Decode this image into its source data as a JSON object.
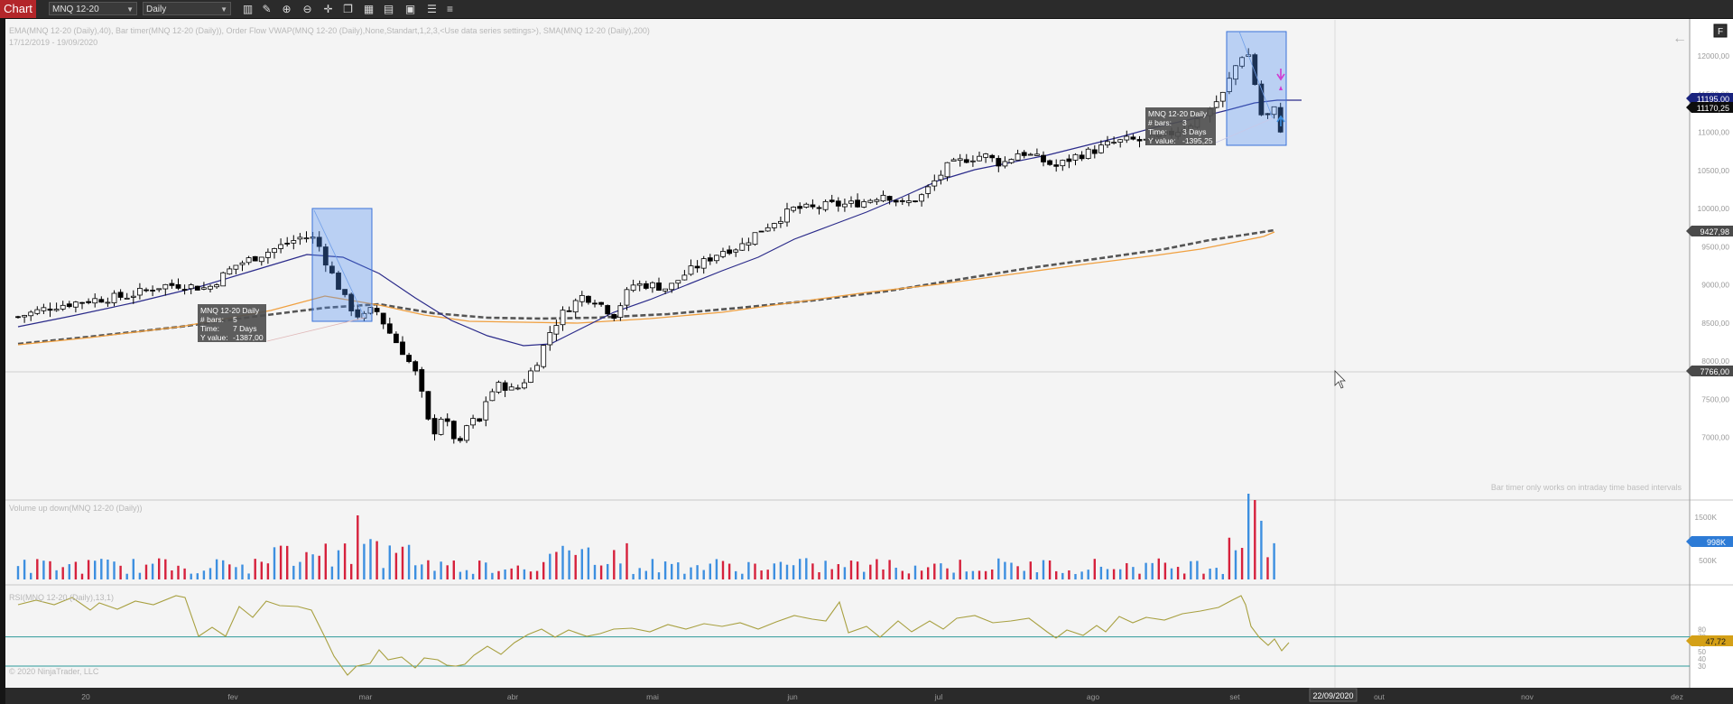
{
  "toolbar": {
    "tab_label": "Chart",
    "instrument": "MNQ 12-20",
    "interval": "Daily",
    "tools": [
      "bar-style-icon",
      "draw-pencil-icon",
      "zoom-in-icon",
      "zoom-out-icon",
      "crosshair-icon",
      "copy-icon",
      "grid-layout-icon",
      "strategy-icon",
      "data-box-icon",
      "properties-icon"
    ]
  },
  "price_panel": {
    "indicator_label": "EMA(MNQ 12-20 (Daily),40), Bar timer(MNQ 12-20 (Daily)), Order Flow VWAP(MNQ 12-20 (Daily),None,Standart,1,2,3,<Use data series settings>), SMA(MNQ 12-20 (Daily),200)",
    "date_range": "17/12/2019 - 19/09/2020",
    "bar_timer_note": "Bar timer only works on intraday time based intervals",
    "price_ticks": [
      "12000,00",
      "11500,00",
      "11000,00",
      "10500,00",
      "10000,00",
      "9500,00",
      "9000,00",
      "8500,00",
      "8000,00",
      "7500,00",
      "7000,00"
    ],
    "markers": {
      "last_price": "11170,25",
      "hidden_price": "11195,00",
      "sma_value": "9427,98",
      "crosshair_price": "7766,00"
    },
    "tooltips": [
      {
        "title": "MNQ 12-20 Daily",
        "bars_label": "# bars:",
        "bars": "5",
        "time_label": "Time:",
        "time": "7 Days",
        "y_label": "Y value:",
        "y": "-1387,00"
      },
      {
        "title": "MNQ 12-20 Daily",
        "bars_label": "# bars:",
        "bars": "3",
        "time_label": "Time:",
        "time": "3 Days",
        "y_label": "Y value:",
        "y": "-1395,25"
      }
    ],
    "f_button": "F",
    "back_arrow": "←"
  },
  "volume_panel": {
    "label": "Volume up down(MNQ 12-20 (Daily))",
    "ticks": [
      "1500K",
      "1000K",
      "500K"
    ],
    "marker": "998K"
  },
  "rsi_panel": {
    "label": "RSI(MNQ 12-20 (Daily),13,1)",
    "copyright": "© 2020 NinjaTrader, LLC",
    "ticks": [
      "80",
      "70",
      "60",
      "50",
      "40",
      "30"
    ],
    "marker": "47,72"
  },
  "time_axis": {
    "labels": [
      "20",
      "fev",
      "mar",
      "abr",
      "mai",
      "jun",
      "jul",
      "ago",
      "set",
      "out",
      "nov",
      "dez"
    ],
    "crosshair_date": "22/09/2020"
  },
  "colors": {
    "bg": "#f4f4f4",
    "candle_up": "#ffffff",
    "candle_down": "#000000",
    "ema": "#2b2b8a",
    "vwap": "#f0a040",
    "sma": "#555555",
    "vol_up": "#3d8fe0",
    "vol_down": "#d6213c",
    "rsi": "#a8a040",
    "rsi_level": "#2d9a9a",
    "marker_blue": "#1a237e",
    "marker_gray": "#4a4a4a",
    "marker_gold": "#d4a017",
    "marker_vol": "#2d7bd6"
  }
}
